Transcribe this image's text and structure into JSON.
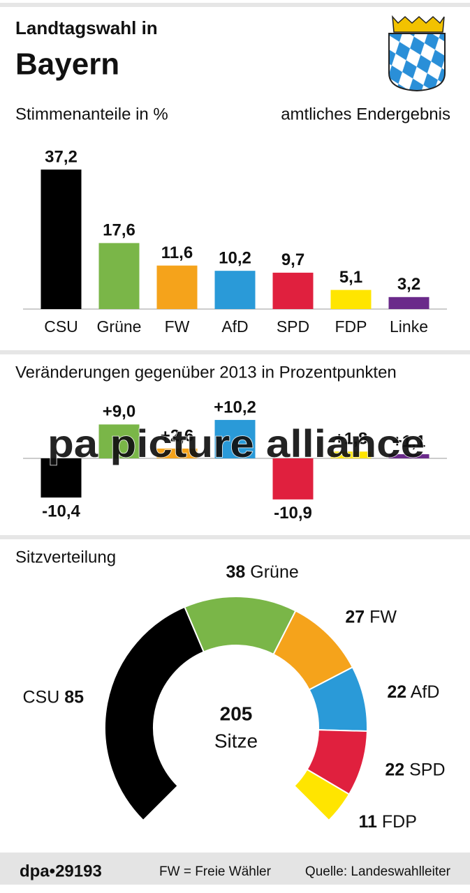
{
  "header": {
    "title": "Landtagswahl in",
    "region": "Bayern",
    "subtitle": "Stimmenanteile in %",
    "note": "amtliches Endergebnis"
  },
  "chart_data": [
    {
      "type": "bar",
      "categories": [
        "CSU",
        "Grüne",
        "FW",
        "AfD",
        "SPD",
        "FDP",
        "Linke"
      ],
      "values": [
        37.2,
        17.6,
        11.6,
        10.2,
        9.7,
        5.1,
        3.2
      ],
      "value_labels": [
        "37,2",
        "17,6",
        "11,6",
        "10,2",
        "9,7",
        "5,1",
        "3,2"
      ],
      "colors": [
        "#000000",
        "#7ab648",
        "#f5a31b",
        "#2a9ad8",
        "#e0203e",
        "#ffe500",
        "#6a2a8a"
      ],
      "ylim": [
        0,
        40
      ]
    },
    {
      "type": "bar",
      "title": "Veränderungen gegenüber 2013 in Prozentpunkten",
      "values": [
        -10.4,
        9.0,
        2.6,
        10.2,
        -10.9,
        1.8,
        1.1
      ],
      "value_labels": [
        "-10,4",
        "+9,0",
        "+2,6",
        "+10,2",
        "-10,9",
        "+1,8",
        "+1,1"
      ],
      "colors": [
        "#000000",
        "#7ab648",
        "#f5a31b",
        "#2a9ad8",
        "#e0203e",
        "#ffe500",
        "#6a2a8a"
      ],
      "ylim": [
        -11,
        11
      ]
    },
    {
      "type": "donut",
      "title": "Sitzverteilung",
      "total": "205",
      "total_label": "Sitze",
      "categories": [
        "CSU",
        "Grüne",
        "FW",
        "AfD",
        "SPD",
        "FDP"
      ],
      "values": [
        85,
        38,
        27,
        22,
        22,
        11
      ],
      "colors": [
        "#000000",
        "#7ab648",
        "#f5a31b",
        "#2a9ad8",
        "#e0203e",
        "#ffe500"
      ]
    }
  ],
  "watermark": "pa picture alliance",
  "footer": {
    "id": "dpa•29193",
    "legend": "FW = Freie Wähler",
    "source": "Quelle: Landeswahlleiter"
  }
}
